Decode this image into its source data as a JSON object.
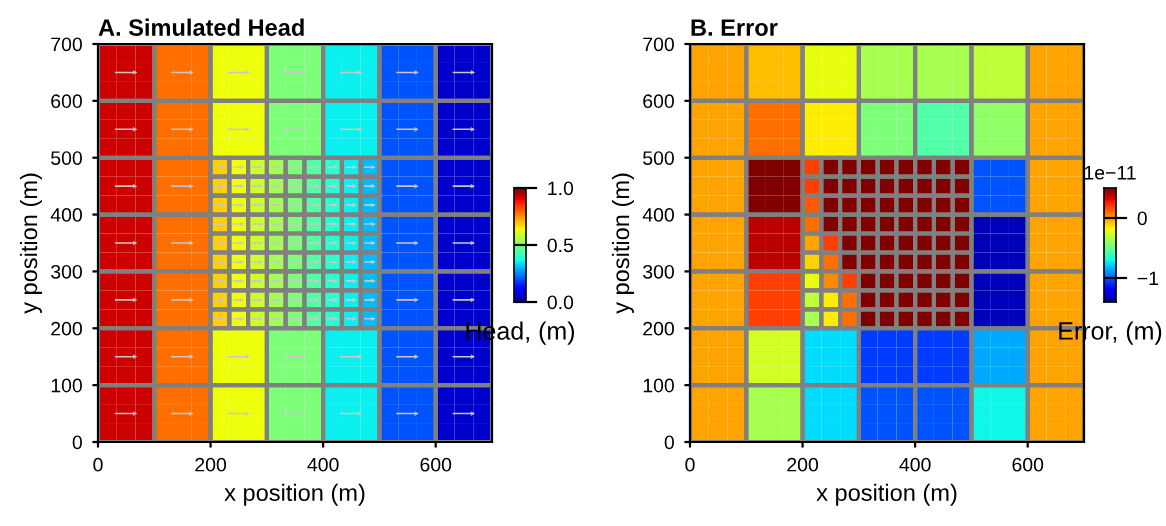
{
  "chart_data": [
    {
      "type": "heatmap",
      "title": "A. Simulated Head",
      "xlabel": "x position (m)",
      "ylabel": "y position (m)",
      "clabel": "Head, (m)",
      "xlim": [
        0,
        700
      ],
      "xticks": [
        0,
        200,
        400,
        600
      ],
      "ylim": [
        0,
        700
      ],
      "yticks": [
        0,
        100,
        200,
        300,
        400,
        500,
        600,
        700
      ],
      "clim": [
        0,
        1
      ],
      "cticks": [
        {
          "value": 0,
          "label": "0.0"
        },
        {
          "value": 0.5,
          "label": "0.5"
        },
        {
          "value": 1,
          "label": "1.0"
        }
      ],
      "cells": [
        [
          0.93,
          0.93,
          0.93,
          0.79,
          0.79,
          0.79,
          0.64,
          0.64,
          0.64,
          0.5,
          0.5,
          0.5,
          0.36,
          0.36,
          0.36,
          0.21,
          0.21,
          0.21,
          0.07,
          0.07,
          0.07
        ],
        [
          0.93,
          0.93,
          0.93,
          0.79,
          0.79,
          0.79,
          0.64,
          0.64,
          0.64,
          0.5,
          0.5,
          0.5,
          0.36,
          0.36,
          0.36,
          0.21,
          0.21,
          0.21,
          0.07,
          0.07,
          0.07
        ],
        [
          0.93,
          0.93,
          0.93,
          0.79,
          0.79,
          0.79,
          0.64,
          0.64,
          0.64,
          0.5,
          0.5,
          0.5,
          0.36,
          0.36,
          0.36,
          0.21,
          0.21,
          0.21,
          0.07,
          0.07,
          0.07
        ],
        [
          0.93,
          0.93,
          0.93,
          0.79,
          0.79,
          0.79,
          0.64,
          0.64,
          0.64,
          0.5,
          0.5,
          0.5,
          0.36,
          0.36,
          0.36,
          0.21,
          0.21,
          0.21,
          0.07,
          0.07,
          0.07
        ],
        [
          0.93,
          0.93,
          0.93,
          0.79,
          0.79,
          0.79,
          0.64,
          0.64,
          0.64,
          0.5,
          0.5,
          0.5,
          0.36,
          0.36,
          0.36,
          0.21,
          0.21,
          0.21,
          0.07,
          0.07,
          0.07
        ],
        [
          0.93,
          0.93,
          0.93,
          0.79,
          0.79,
          0.79,
          0.64,
          0.64,
          0.64,
          0.5,
          0.5,
          0.5,
          0.36,
          0.36,
          0.36,
          0.21,
          0.21,
          0.21,
          0.07,
          0.07,
          0.07
        ],
        [
          0.93,
          0.93,
          0.93,
          0.79,
          0.79,
          0.79,
          0.69,
          0.64,
          0.6,
          0.55,
          0.5,
          0.45,
          0.4,
          0.36,
          0.31,
          0.21,
          0.21,
          0.21,
          0.07,
          0.07,
          0.07
        ],
        [
          0.93,
          0.93,
          0.93,
          0.79,
          0.79,
          0.79,
          0.69,
          0.64,
          0.6,
          0.55,
          0.5,
          0.45,
          0.4,
          0.36,
          0.31,
          0.21,
          0.21,
          0.21,
          0.07,
          0.07,
          0.07
        ],
        [
          0.93,
          0.93,
          0.93,
          0.79,
          0.79,
          0.79,
          0.69,
          0.64,
          0.6,
          0.55,
          0.5,
          0.45,
          0.4,
          0.36,
          0.31,
          0.21,
          0.21,
          0.21,
          0.07,
          0.07,
          0.07
        ],
        [
          0.93,
          0.93,
          0.93,
          0.79,
          0.79,
          0.79,
          0.69,
          0.64,
          0.6,
          0.55,
          0.5,
          0.45,
          0.4,
          0.36,
          0.31,
          0.21,
          0.21,
          0.21,
          0.07,
          0.07,
          0.07
        ],
        [
          0.93,
          0.93,
          0.93,
          0.79,
          0.79,
          0.79,
          0.69,
          0.64,
          0.6,
          0.55,
          0.5,
          0.45,
          0.4,
          0.36,
          0.31,
          0.21,
          0.21,
          0.21,
          0.07,
          0.07,
          0.07
        ],
        [
          0.93,
          0.93,
          0.93,
          0.79,
          0.79,
          0.79,
          0.69,
          0.64,
          0.6,
          0.55,
          0.5,
          0.45,
          0.4,
          0.36,
          0.31,
          0.21,
          0.21,
          0.21,
          0.07,
          0.07,
          0.07
        ],
        [
          0.93,
          0.93,
          0.93,
          0.79,
          0.79,
          0.79,
          0.69,
          0.64,
          0.6,
          0.55,
          0.5,
          0.45,
          0.4,
          0.36,
          0.31,
          0.21,
          0.21,
          0.21,
          0.07,
          0.07,
          0.07
        ],
        [
          0.93,
          0.93,
          0.93,
          0.79,
          0.79,
          0.79,
          0.69,
          0.64,
          0.6,
          0.55,
          0.5,
          0.45,
          0.4,
          0.36,
          0.31,
          0.21,
          0.21,
          0.21,
          0.07,
          0.07,
          0.07
        ],
        [
          0.93,
          0.93,
          0.93,
          0.79,
          0.79,
          0.79,
          0.69,
          0.64,
          0.6,
          0.55,
          0.5,
          0.45,
          0.4,
          0.36,
          0.31,
          0.21,
          0.21,
          0.21,
          0.07,
          0.07,
          0.07
        ],
        [
          0.93,
          0.93,
          0.93,
          0.79,
          0.79,
          0.79,
          0.64,
          0.64,
          0.64,
          0.5,
          0.5,
          0.5,
          0.36,
          0.36,
          0.36,
          0.21,
          0.21,
          0.21,
          0.07,
          0.07,
          0.07
        ],
        [
          0.93,
          0.93,
          0.93,
          0.79,
          0.79,
          0.79,
          0.64,
          0.64,
          0.64,
          0.5,
          0.5,
          0.5,
          0.36,
          0.36,
          0.36,
          0.21,
          0.21,
          0.21,
          0.07,
          0.07,
          0.07
        ],
        [
          0.93,
          0.93,
          0.93,
          0.79,
          0.79,
          0.79,
          0.64,
          0.64,
          0.64,
          0.5,
          0.5,
          0.5,
          0.36,
          0.36,
          0.36,
          0.21,
          0.21,
          0.21,
          0.07,
          0.07,
          0.07
        ],
        [
          0.93,
          0.93,
          0.93,
          0.79,
          0.79,
          0.79,
          0.64,
          0.64,
          0.64,
          0.5,
          0.5,
          0.5,
          0.36,
          0.36,
          0.36,
          0.21,
          0.21,
          0.21,
          0.07,
          0.07,
          0.07
        ],
        [
          0.93,
          0.93,
          0.93,
          0.79,
          0.79,
          0.79,
          0.64,
          0.64,
          0.64,
          0.5,
          0.5,
          0.5,
          0.36,
          0.36,
          0.36,
          0.21,
          0.21,
          0.21,
          0.07,
          0.07,
          0.07
        ],
        [
          0.93,
          0.93,
          0.93,
          0.79,
          0.79,
          0.79,
          0.64,
          0.64,
          0.64,
          0.5,
          0.5,
          0.5,
          0.36,
          0.36,
          0.36,
          0.21,
          0.21,
          0.21,
          0.07,
          0.07,
          0.07
        ]
      ]
    },
    {
      "type": "heatmap",
      "title": "B. Error",
      "xlabel": "x position (m)",
      "ylabel": "y position (m)",
      "clabel": "Error, (m)",
      "annotations": [
        "1e−11"
      ],
      "xlim": [
        0,
        700
      ],
      "xticks": [
        0,
        200,
        400,
        600
      ],
      "ylim": [
        0,
        700
      ],
      "yticks": [
        0,
        100,
        200,
        300,
        400,
        500,
        600,
        700
      ],
      "clim": [
        -1.4,
        0.5
      ],
      "cticks": [
        {
          "value": -1,
          "label": "−1"
        },
        {
          "value": 0,
          "label": "0"
        }
      ],
      "cells": [
        [
          0,
          0,
          0,
          -0.05,
          -0.05,
          -0.05,
          -0.2,
          -0.2,
          -0.2,
          -0.35,
          -0.35,
          -0.35,
          -0.35,
          -0.35,
          -0.35,
          -0.3,
          -0.3,
          -0.3,
          0,
          0,
          0
        ],
        [
          0,
          0,
          0,
          -0.05,
          -0.05,
          -0.05,
          -0.2,
          -0.2,
          -0.2,
          -0.35,
          -0.35,
          -0.35,
          -0.35,
          -0.35,
          -0.35,
          -0.3,
          -0.3,
          -0.3,
          0,
          0,
          0
        ],
        [
          0,
          0,
          0,
          -0.05,
          -0.05,
          -0.05,
          -0.2,
          -0.2,
          -0.2,
          -0.35,
          -0.35,
          -0.35,
          -0.35,
          -0.35,
          -0.35,
          -0.3,
          -0.3,
          -0.3,
          0,
          0,
          0
        ],
        [
          0,
          0,
          0,
          0.1,
          0.1,
          0.1,
          -0.15,
          -0.15,
          -0.15,
          -0.45,
          -0.45,
          -0.45,
          -0.55,
          -0.55,
          -0.55,
          -0.4,
          -0.4,
          -0.4,
          0,
          0,
          0
        ],
        [
          0,
          0,
          0,
          0.1,
          0.1,
          0.1,
          -0.15,
          -0.15,
          -0.15,
          -0.45,
          -0.45,
          -0.45,
          -0.55,
          -0.55,
          -0.55,
          -0.4,
          -0.4,
          -0.4,
          0,
          0,
          0
        ],
        [
          0,
          0,
          0,
          0.1,
          0.1,
          0.1,
          -0.15,
          -0.15,
          -0.15,
          -0.45,
          -0.45,
          -0.45,
          -0.55,
          -0.55,
          -0.55,
          -0.4,
          -0.4,
          -0.4,
          0,
          0,
          0
        ],
        [
          0,
          0,
          0,
          0.5,
          0.5,
          0.5,
          0.2,
          0.5,
          0.5,
          0.5,
          0.5,
          0.5,
          0.5,
          0.5,
          0.5,
          -1,
          -1,
          -1,
          0,
          0,
          0
        ],
        [
          0,
          0,
          0,
          0.5,
          0.5,
          0.5,
          0.2,
          0.5,
          0.5,
          0.5,
          0.5,
          0.5,
          0.5,
          0.5,
          0.5,
          -1,
          -1,
          -1,
          0,
          0,
          0
        ],
        [
          0,
          0,
          0,
          0.5,
          0.5,
          0.5,
          0.15,
          0.5,
          0.5,
          0.5,
          0.5,
          0.5,
          0.5,
          0.5,
          0.5,
          -1,
          -1,
          -1,
          0,
          0,
          0
        ],
        [
          0,
          0,
          0,
          0.4,
          0.4,
          0.4,
          0.1,
          0.5,
          0.5,
          0.5,
          0.5,
          0.5,
          0.5,
          0.5,
          0.5,
          -1.3,
          -1.3,
          -1.3,
          0,
          0,
          0
        ],
        [
          0,
          0,
          0,
          0.4,
          0.4,
          0.4,
          0,
          0.2,
          0.5,
          0.5,
          0.5,
          0.5,
          0.5,
          0.5,
          0.5,
          -1.3,
          -1.3,
          -1.3,
          0,
          0,
          0
        ],
        [
          0,
          0,
          0,
          0.4,
          0.4,
          0.4,
          -0.1,
          0.1,
          0.5,
          0.5,
          0.5,
          0.5,
          0.5,
          0.5,
          0.5,
          -1.3,
          -1.3,
          -1.3,
          0,
          0,
          0
        ],
        [
          0,
          0,
          0,
          0.2,
          0.2,
          0.2,
          -0.2,
          0.05,
          0.2,
          0.5,
          0.5,
          0.5,
          0.5,
          0.5,
          0.5,
          -1.3,
          -1.3,
          -1.3,
          0,
          0,
          0
        ],
        [
          0,
          0,
          0,
          0.2,
          0.2,
          0.2,
          -0.3,
          -0.15,
          0.1,
          0.5,
          0.5,
          0.5,
          0.5,
          0.5,
          0.5,
          -1.3,
          -1.3,
          -1.3,
          0,
          0,
          0
        ],
        [
          0,
          0,
          0,
          0.2,
          0.2,
          0.2,
          -0.35,
          -0.15,
          0.1,
          0.5,
          0.5,
          0.5,
          0.5,
          0.5,
          0.5,
          -1.3,
          -1.3,
          -1.3,
          0,
          0,
          0
        ],
        [
          0,
          0,
          0,
          -0.25,
          -0.25,
          -0.25,
          -0.75,
          -0.75,
          -0.75,
          -1.05,
          -1.05,
          -1.05,
          -1.05,
          -1.05,
          -1.05,
          -0.85,
          -0.85,
          -0.85,
          0,
          0,
          0
        ],
        [
          0,
          0,
          0,
          -0.25,
          -0.25,
          -0.25,
          -0.75,
          -0.75,
          -0.75,
          -1.05,
          -1.05,
          -1.05,
          -1.05,
          -1.05,
          -1.05,
          -0.85,
          -0.85,
          -0.85,
          0,
          0,
          0
        ],
        [
          0,
          0,
          0,
          -0.25,
          -0.25,
          -0.25,
          -0.75,
          -0.75,
          -0.75,
          -1.05,
          -1.05,
          -1.05,
          -1.05,
          -1.05,
          -1.05,
          -0.85,
          -0.85,
          -0.85,
          0,
          0,
          0
        ],
        [
          0,
          0,
          0,
          -0.35,
          -0.35,
          -0.35,
          -0.75,
          -0.75,
          -0.75,
          -1,
          -1,
          -1,
          -1,
          -1,
          -1,
          -0.7,
          -0.7,
          -0.7,
          0,
          0,
          0
        ],
        [
          0,
          0,
          0,
          -0.35,
          -0.35,
          -0.35,
          -0.75,
          -0.75,
          -0.75,
          -1,
          -1,
          -1,
          -1,
          -1,
          -1,
          -0.7,
          -0.7,
          -0.7,
          0,
          0,
          0
        ],
        [
          0,
          0,
          0,
          -0.35,
          -0.35,
          -0.35,
          -0.75,
          -0.75,
          -0.75,
          -1,
          -1,
          -1,
          -1,
          -1,
          -1,
          -0.7,
          -0.7,
          -0.7,
          0,
          0,
          0
        ]
      ]
    }
  ]
}
